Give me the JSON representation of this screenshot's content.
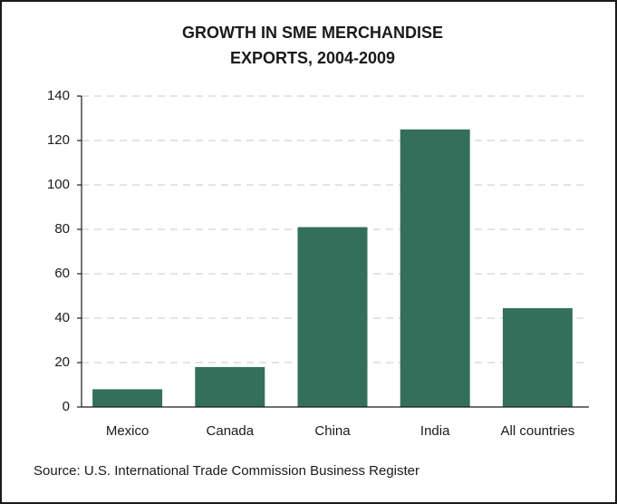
{
  "chart_data": {
    "type": "bar",
    "title": [
      "GROWTH IN SME MERCHANDISE",
      "EXPORTS, 2004-2009"
    ],
    "categories": [
      "Mexico",
      "Canada",
      "China",
      "India",
      "All countries"
    ],
    "values": [
      8,
      18,
      81,
      125,
      44.5
    ],
    "color": "#346f5b",
    "ylim": [
      0,
      140
    ],
    "yticks": [
      0,
      20,
      40,
      60,
      80,
      100,
      120,
      140
    ],
    "grid": true,
    "source": "Source: U.S. International Trade Commission Business Register"
  }
}
